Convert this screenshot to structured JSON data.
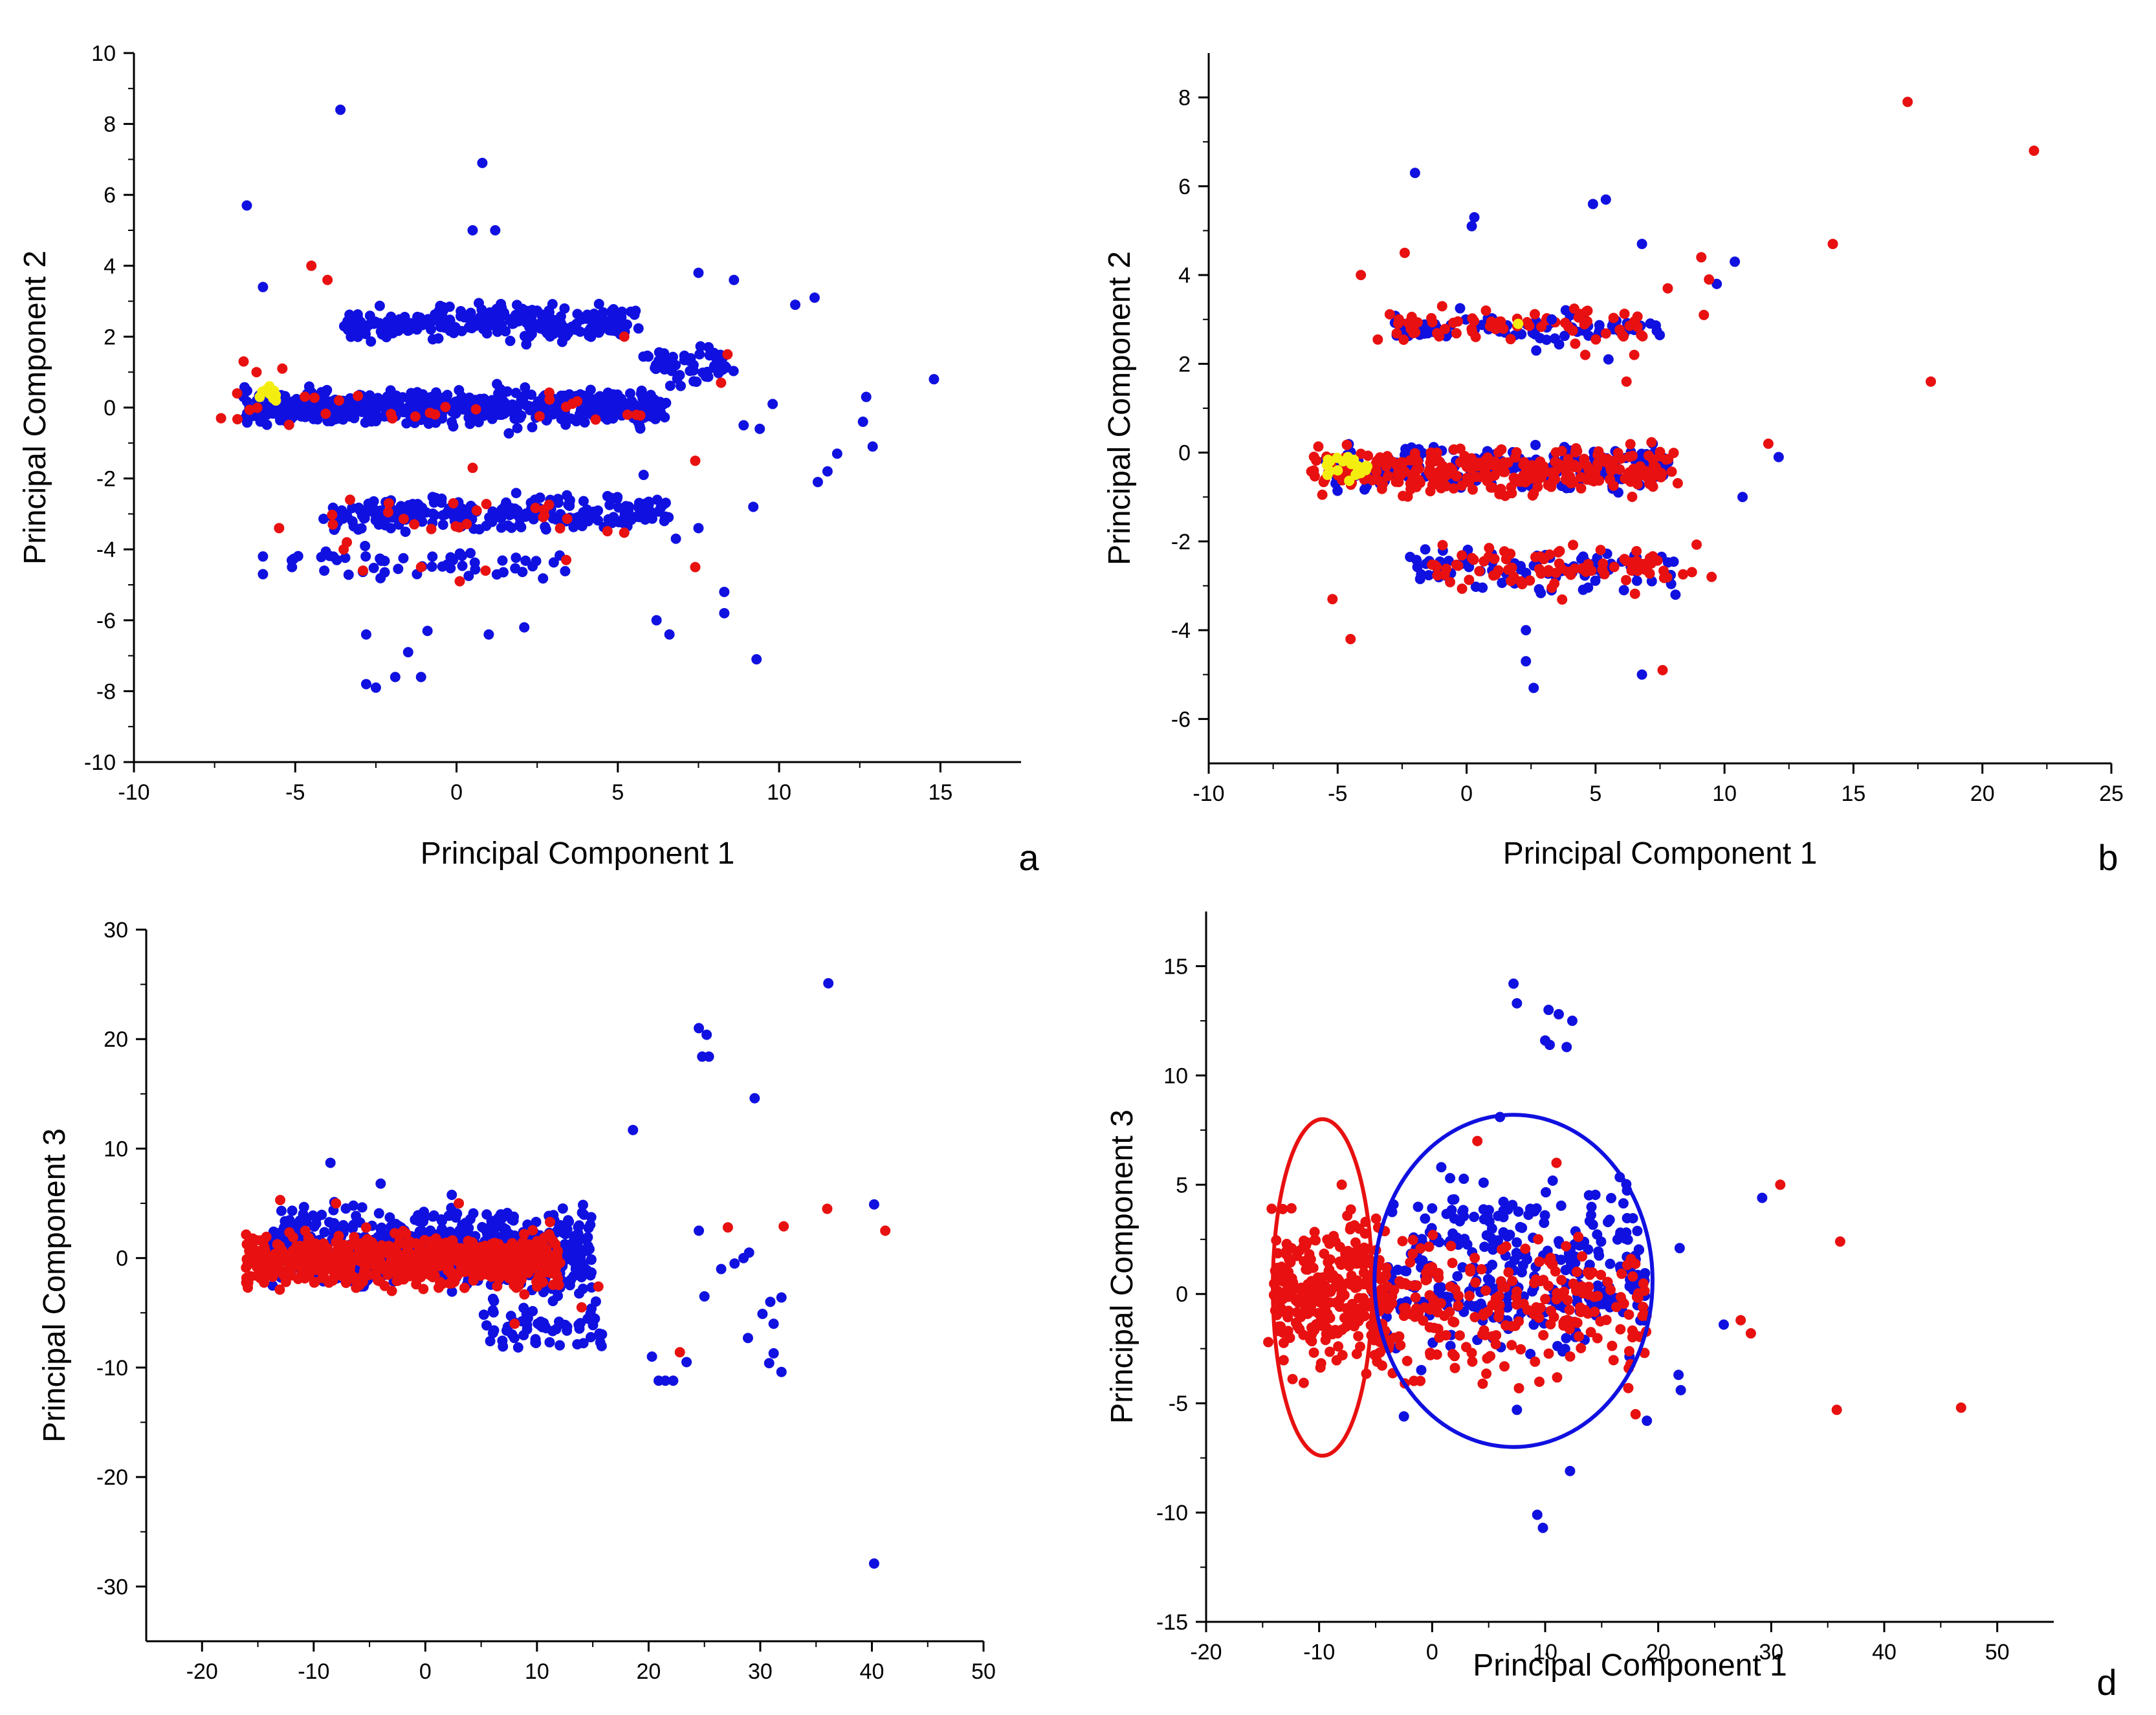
{
  "colors": {
    "series_blue": "#1010e0",
    "series_red": "#e81010",
    "series_yellow": "#f4ee10",
    "axis": "#000000"
  },
  "chart_data": [
    {
      "id": "a",
      "type": "scatter",
      "panel_label": "a",
      "xlabel": "Principal Component 1",
      "ylabel": "Principal Component 2",
      "xlim": [
        -10,
        17.5
      ],
      "ylim": [
        -10,
        10
      ],
      "xticks": [
        -10,
        -5,
        0,
        5,
        10,
        15
      ],
      "yticks": [
        -10,
        -8,
        -6,
        -4,
        -2,
        0,
        2,
        4,
        6,
        8,
        10
      ],
      "series": [
        {
          "name": "blue",
          "color": "#1010e0",
          "points": [
            [
              -3.6,
              8.4
            ],
            [
              -6.5,
              5.7
            ],
            [
              0.8,
              6.9
            ],
            [
              0.5,
              5.0
            ],
            [
              1.2,
              5.0
            ],
            [
              -6.0,
              3.4
            ],
            [
              11.1,
              3.1
            ],
            [
              10.5,
              2.9
            ],
            [
              14.8,
              0.8
            ],
            [
              12.7,
              0.3
            ],
            [
              12.6,
              -0.4
            ],
            [
              12.9,
              -1.1
            ],
            [
              11.8,
              -1.3
            ],
            [
              11.5,
              -1.8
            ],
            [
              11.2,
              -2.1
            ],
            [
              9.4,
              -0.6
            ],
            [
              9.8,
              0.1
            ],
            [
              8.9,
              -0.5
            ],
            [
              9.2,
              -2.8
            ],
            [
              9.3,
              -7.1
            ],
            [
              8.3,
              -5.2
            ],
            [
              8.3,
              -5.8
            ],
            [
              6.2,
              -6.0
            ],
            [
              6.6,
              -6.4
            ],
            [
              -2.8,
              -7.8
            ],
            [
              -2.5,
              -7.9
            ],
            [
              -1.9,
              -7.6
            ],
            [
              -1.1,
              -7.6
            ],
            [
              -1.5,
              -6.9
            ],
            [
              -0.9,
              -6.3
            ],
            [
              -2.8,
              -6.4
            ],
            [
              1.0,
              -6.4
            ],
            [
              2.1,
              -6.2
            ],
            [
              7.5,
              3.8
            ],
            [
              8.6,
              3.6
            ],
            [
              -6.0,
              -4.2
            ],
            [
              -5.1,
              -4.5
            ],
            [
              -4.1,
              -4.6
            ],
            [
              -6.0,
              -4.7
            ],
            [
              5.8,
              -1.9
            ],
            [
              6.8,
              -3.7
            ],
            [
              7.5,
              -3.4
            ]
          ]
        },
        {
          "name": "red",
          "color": "#e81010",
          "points": [
            [
              -4.5,
              4.0
            ],
            [
              -4.0,
              3.6
            ],
            [
              -6.6,
              1.3
            ],
            [
              -6.2,
              1.0
            ],
            [
              -5.4,
              1.1
            ],
            [
              -7.3,
              -0.3
            ],
            [
              -6.8,
              0.4
            ],
            [
              -3.3,
              -2.6
            ],
            [
              -2.1,
              -2.7
            ],
            [
              -0.1,
              -2.7
            ],
            [
              0.5,
              -1.7
            ],
            [
              -5.5,
              -3.4
            ],
            [
              -3.5,
              -4.0
            ],
            [
              -2.9,
              -4.6
            ],
            [
              -1.1,
              -4.5
            ],
            [
              0.1,
              -4.9
            ],
            [
              0.9,
              -4.6
            ],
            [
              3.4,
              -4.3
            ],
            [
              7.4,
              -4.5
            ],
            [
              7.4,
              -1.5
            ],
            [
              5.3,
              -0.2
            ],
            [
              5.2,
              2.0
            ],
            [
              8.4,
              1.5
            ],
            [
              8.2,
              0.7
            ],
            [
              -3.4,
              -3.8
            ]
          ]
        },
        {
          "name": "yellow",
          "color": "#f4ee10",
          "points": [
            [
              -5.9,
              0.5
            ],
            [
              -5.6,
              0.2
            ],
            [
              -6.1,
              0.3
            ],
            [
              -5.8,
              0.6
            ]
          ]
        }
      ]
    },
    {
      "id": "b",
      "type": "scatter",
      "panel_label": "b",
      "xlabel": "Principal Component 1",
      "ylabel": "Principal Component 2",
      "xlim": [
        -10,
        25
      ],
      "ylim": [
        -7,
        9
      ],
      "xticks": [
        -10,
        -5,
        0,
        5,
        10,
        15,
        20,
        25
      ],
      "yticks": [
        -6,
        -4,
        -2,
        0,
        2,
        4,
        6,
        8
      ],
      "series": [
        {
          "name": "blue",
          "color": "#1010e0",
          "points": [
            [
              -2.0,
              6.3
            ],
            [
              0.3,
              5.3
            ],
            [
              0.2,
              5.1
            ],
            [
              4.9,
              5.6
            ],
            [
              5.4,
              5.7
            ],
            [
              6.8,
              4.7
            ],
            [
              10.4,
              4.3
            ],
            [
              9.7,
              3.8
            ],
            [
              12.1,
              -0.1
            ],
            [
              10.7,
              -1.0
            ],
            [
              2.3,
              -4.0
            ],
            [
              2.3,
              -4.7
            ],
            [
              2.6,
              -5.3
            ],
            [
              6.8,
              -5.0
            ],
            [
              8.1,
              -3.2
            ],
            [
              3.3,
              3.0
            ],
            [
              2.7,
              2.3
            ],
            [
              5.5,
              2.1
            ]
          ]
        },
        {
          "name": "red",
          "color": "#e81010",
          "points": [
            [
              17.1,
              7.9
            ],
            [
              22.0,
              6.8
            ],
            [
              14.2,
              4.7
            ],
            [
              9.1,
              4.4
            ],
            [
              9.2,
              3.1
            ],
            [
              9.4,
              3.9
            ],
            [
              7.8,
              3.7
            ],
            [
              18.0,
              1.6
            ],
            [
              11.7,
              0.2
            ],
            [
              7.6,
              -4.9
            ],
            [
              -4.5,
              -4.2
            ],
            [
              -5.2,
              -3.3
            ],
            [
              9.5,
              -2.8
            ],
            [
              -4.1,
              4.0
            ],
            [
              -2.4,
              4.5
            ],
            [
              4.6,
              2.2
            ],
            [
              6.2,
              1.6
            ],
            [
              6.5,
              2.2
            ]
          ]
        },
        {
          "name": "yellow",
          "color": "#f4ee10",
          "points": [
            [
              -5.0,
              -0.4
            ],
            [
              -4.6,
              -0.1
            ],
            [
              -4.3,
              -0.5
            ],
            [
              -5.3,
              -0.2
            ],
            [
              2.0,
              2.9
            ]
          ]
        }
      ]
    },
    {
      "id": "c",
      "type": "scatter",
      "panel_label": "c",
      "xlabel": "Principal Component 1",
      "ylabel": "Principal Component 3",
      "xlim": [
        -25,
        50
      ],
      "ylim": [
        -35,
        30
      ],
      "xticks": [
        -20,
        -10,
        0,
        10,
        20,
        30,
        40,
        50
      ],
      "yticks": [
        -30,
        -20,
        -10,
        0,
        10,
        20,
        30
      ],
      "series": [
        {
          "name": "blue",
          "color": "#1010e0",
          "points": [
            [
              36.1,
              25.1
            ],
            [
              24.5,
              21.0
            ],
            [
              25.2,
              20.4
            ],
            [
              24.8,
              18.4
            ],
            [
              25.4,
              18.4
            ],
            [
              29.5,
              14.6
            ],
            [
              18.6,
              11.7
            ],
            [
              40.2,
              -27.9
            ],
            [
              40.2,
              4.9
            ],
            [
              31.2,
              -6.0
            ],
            [
              30.2,
              -5.1
            ],
            [
              31.2,
              -8.7
            ],
            [
              30.8,
              -9.6
            ],
            [
              31.9,
              -10.4
            ],
            [
              20.3,
              -9.0
            ],
            [
              20.9,
              -11.2
            ],
            [
              21.5,
              -11.2
            ],
            [
              22.2,
              -11.2
            ],
            [
              28.9,
              -7.3
            ],
            [
              23.4,
              -9.5
            ],
            [
              30.9,
              -4.0
            ],
            [
              31.9,
              -3.6
            ],
            [
              26.5,
              -1.0
            ],
            [
              27.7,
              -0.5
            ],
            [
              28.5,
              0.0
            ],
            [
              29.0,
              0.5
            ],
            [
              24.5,
              2.5
            ],
            [
              25.0,
              -3.5
            ],
            [
              -8.5,
              8.7
            ],
            [
              -4.0,
              6.8
            ]
          ]
        },
        {
          "name": "red",
          "color": "#e81010",
          "points": [
            [
              36.0,
              4.5
            ],
            [
              41.2,
              2.5
            ],
            [
              32.1,
              2.9
            ],
            [
              27.1,
              2.8
            ],
            [
              22.8,
              -8.6
            ],
            [
              -15.9,
              -2.7
            ],
            [
              -13.0,
              5.3
            ],
            [
              -8.0,
              5.0
            ],
            [
              -3.0,
              -3.0
            ],
            [
              3.0,
              5.0
            ],
            [
              8.0,
              -6.0
            ],
            [
              14.0,
              -4.5
            ],
            [
              15.5,
              -2.6
            ]
          ]
        }
      ]
    },
    {
      "id": "d",
      "type": "scatter",
      "panel_label": "d",
      "xlabel": "Principal Component 1",
      "ylabel": "Principal Component 3",
      "xlim": [
        -20,
        55
      ],
      "ylim": [
        -15,
        17.5
      ],
      "xticks": [
        -20,
        -10,
        0,
        10,
        20,
        30,
        40,
        50
      ],
      "yticks": [
        -15,
        -10,
        -5,
        0,
        5,
        10,
        15
      ],
      "series": [
        {
          "name": "blue",
          "color": "#1010e0",
          "points": [
            [
              7.2,
              14.2
            ],
            [
              7.5,
              13.3
            ],
            [
              10.3,
              13.0
            ],
            [
              11.2,
              12.8
            ],
            [
              12.4,
              12.5
            ],
            [
              10.0,
              11.6
            ],
            [
              10.4,
              11.4
            ],
            [
              11.9,
              11.3
            ],
            [
              9.3,
              -10.1
            ],
            [
              9.8,
              -10.7
            ],
            [
              12.2,
              -8.1
            ],
            [
              21.9,
              2.1
            ],
            [
              21.8,
              -3.7
            ],
            [
              22.0,
              -4.4
            ],
            [
              25.8,
              -1.4
            ],
            [
              29.2,
              4.4
            ],
            [
              6.0,
              8.1
            ],
            [
              -2.5,
              -5.6
            ],
            [
              19.0,
              -5.8
            ],
            [
              7.5,
              -5.3
            ]
          ]
        },
        {
          "name": "red",
          "color": "#e81010",
          "points": [
            [
              30.8,
              5.0
            ],
            [
              36.1,
              2.4
            ],
            [
              27.3,
              -1.2
            ],
            [
              28.2,
              -1.8
            ],
            [
              35.8,
              -5.3
            ],
            [
              46.8,
              -5.2
            ],
            [
              4.0,
              7.0
            ],
            [
              -14.2,
              3.9
            ],
            [
              -14.5,
              -2.2
            ],
            [
              -8.0,
              5.0
            ],
            [
              18.0,
              -5.5
            ],
            [
              11.0,
              6.0
            ]
          ]
        }
      ],
      "ellipses": [
        {
          "color": "#e81010",
          "center": [
            -9.7,
            0.3
          ],
          "rx": 4.4,
          "ry": 7.7
        },
        {
          "color": "#1010e0",
          "center": [
            7.2,
            0.6
          ],
          "rx": 12.3,
          "ry": 7.6
        }
      ]
    }
  ]
}
